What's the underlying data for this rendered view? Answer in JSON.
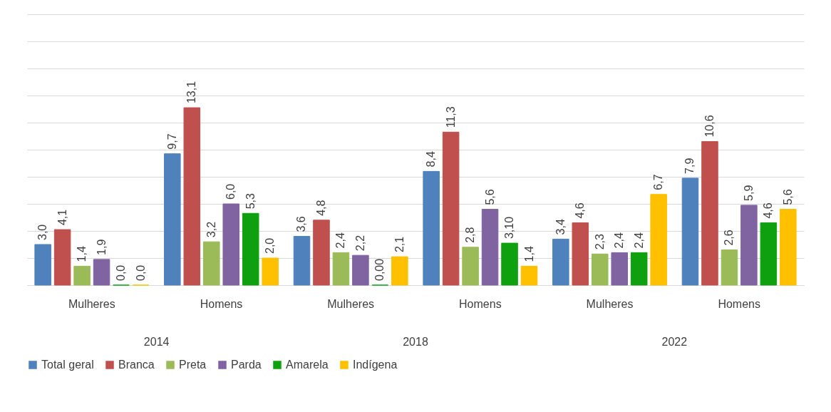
{
  "chart_data": {
    "type": "bar",
    "categories": [
      "Mulheres",
      "Homens",
      "Mulheres",
      "Homens",
      "Mulheres",
      "Homens"
    ],
    "annotations": [
      "2014",
      "2018",
      "2022"
    ],
    "series": [
      {
        "name": "Total geral",
        "color": "#4f81bd",
        "values": [
          3.0,
          9.7,
          3.6,
          8.4,
          3.4,
          7.9
        ],
        "value_labels": [
          "3,0",
          "9,7",
          "3,6",
          "8,4",
          "3,4",
          "7,9"
        ]
      },
      {
        "name": "Branca",
        "color": "#c0504d",
        "values": [
          4.1,
          13.1,
          4.8,
          11.3,
          4.6,
          10.6
        ],
        "value_labels": [
          "4,1",
          "13,1",
          "4,8",
          "11,3",
          "4,6",
          "10,6"
        ]
      },
      {
        "name": "Preta",
        "color": "#9bbb59",
        "values": [
          1.4,
          3.2,
          2.4,
          2.8,
          2.3,
          2.6
        ],
        "value_labels": [
          "1,4",
          "3,2",
          "2,4",
          "2,8",
          "2,3",
          "2,6"
        ]
      },
      {
        "name": "Parda",
        "color": "#8064a2",
        "values": [
          1.9,
          6.0,
          2.2,
          5.6,
          2.4,
          5.9
        ],
        "value_labels": [
          "1,9",
          "6,0",
          "2,2",
          "5,6",
          "2,4",
          "5,9"
        ]
      },
      {
        "name": "Amarela",
        "color": "#0fa00f",
        "values": [
          0.0,
          5.3,
          0.0,
          3.1,
          2.4,
          4.6
        ],
        "value_labels": [
          "0,0",
          "5,3",
          "0,00",
          "3,10",
          "2,4",
          "4,6"
        ]
      },
      {
        "name": "Indígena",
        "color": "#ffc000",
        "values": [
          0.0,
          2.0,
          2.1,
          1.4,
          6.7,
          5.6
        ],
        "value_labels": [
          "0,0",
          "2,0",
          "2,1",
          "1,4",
          "6,7",
          "5,6"
        ]
      }
    ],
    "ylim": [
      0,
      20
    ],
    "tick_labels": "x",
    "grid": "y",
    "legend": "bottom"
  }
}
